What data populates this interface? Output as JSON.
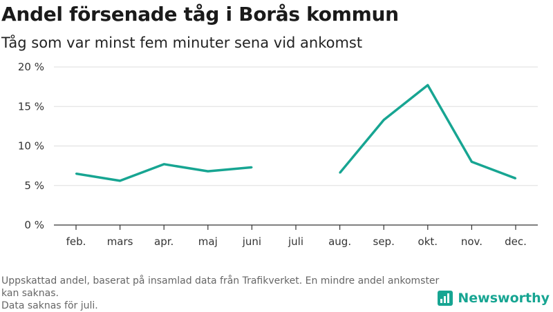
{
  "title": "Andel försenade tåg i Borås kommun",
  "subtitle": "Tåg som var minst fem minuter sena vid ankomst",
  "footnote": {
    "lines": [
      "Uppskattad andel, baserat på insamlad data från Trafikverket. En mindre andel ankomster kan saknas.",
      "Data saknas för juli."
    ]
  },
  "brand": {
    "name": "Newsworthy"
  },
  "colors": {
    "line": "#17a592",
    "grid": "#dddddd",
    "axis": "#333333",
    "brand": "#17a592"
  },
  "chart_data": {
    "type": "line",
    "categories": [
      "feb.",
      "mars",
      "apr.",
      "maj",
      "juni",
      "juli",
      "aug.",
      "sep.",
      "okt.",
      "nov.",
      "dec."
    ],
    "series": [
      {
        "values": [
          6.5,
          5.6,
          7.7,
          6.8,
          7.3,
          null,
          6.6,
          13.3,
          17.7,
          8.0,
          5.9
        ]
      }
    ],
    "y_ticks": [
      0,
      5,
      10,
      15,
      20
    ],
    "y_tick_labels": [
      "0 %",
      "5 %",
      "10 %",
      "15 %",
      "20 %"
    ],
    "ylim": [
      0,
      20
    ],
    "grid": true,
    "gaps": "missing value for juli breaks the line"
  }
}
